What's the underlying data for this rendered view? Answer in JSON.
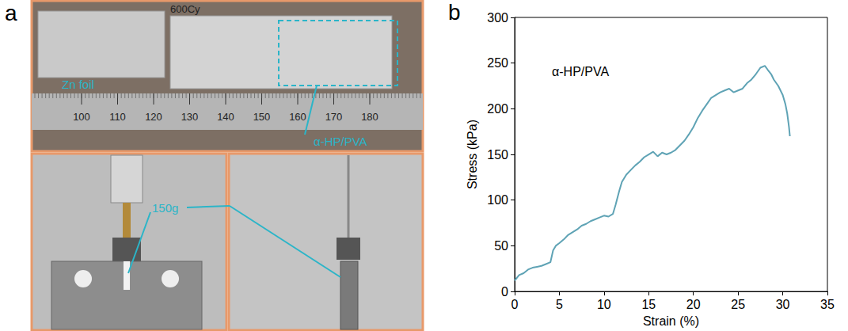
{
  "panel_labels": [
    "a",
    "b"
  ],
  "panel_a": {
    "top_photo": {
      "marking": "600Cy",
      "labels": [
        "Zn foil",
        "α-HP/PVA"
      ],
      "ruler": [
        100,
        110,
        120,
        130,
        140,
        150,
        160,
        170,
        180
      ]
    },
    "bottom_photos": {
      "label": "150g"
    }
  },
  "chart_data": {
    "type": "line",
    "xlabel": "Strain (%)",
    "ylabel": "Stress (kPa)",
    "x": [
      0,
      0.5,
      1,
      1.5,
      2,
      2.5,
      3,
      3.5,
      4,
      4.3,
      4.6,
      5,
      5.5,
      6,
      6.5,
      7,
      7.5,
      8,
      8.5,
      9,
      9.5,
      10,
      10.5,
      11,
      11.3,
      11.7,
      12,
      12.5,
      13,
      13.5,
      14,
      14.5,
      15,
      15.5,
      16,
      16.5,
      17,
      17.5,
      18,
      18.5,
      19,
      19.5,
      20,
      20.5,
      21,
      21.5,
      22,
      22.5,
      23,
      23.5,
      24,
      24.5,
      25,
      25.5,
      26,
      26.5,
      27,
      27.5,
      28,
      28.3,
      28.7,
      29,
      29.5,
      30,
      30.3,
      30.5,
      30.7,
      30.8
    ],
    "series": [
      {
        "name": "α-HP/PVA",
        "color": "#5fa3b5",
        "values": [
          12,
          18,
          20,
          24,
          26,
          27,
          28,
          30,
          32,
          45,
          50,
          53,
          57,
          62,
          65,
          68,
          72,
          74,
          77,
          79,
          81,
          83,
          82,
          85,
          95,
          110,
          120,
          128,
          133,
          138,
          142,
          147,
          150,
          153,
          148,
          152,
          150,
          152,
          155,
          160,
          165,
          172,
          180,
          190,
          198,
          205,
          212,
          215,
          218,
          220,
          222,
          218,
          220,
          222,
          228,
          232,
          238,
          245,
          247,
          243,
          238,
          232,
          225,
          215,
          205,
          195,
          180,
          170
        ]
      }
    ],
    "xlim": [
      0,
      35
    ],
    "xticks": [
      0,
      5,
      10,
      15,
      20,
      25,
      30,
      35
    ],
    "ylim": [
      0,
      300
    ],
    "yticks": [
      0,
      50,
      100,
      150,
      200,
      250,
      300
    ],
    "grid": false
  }
}
